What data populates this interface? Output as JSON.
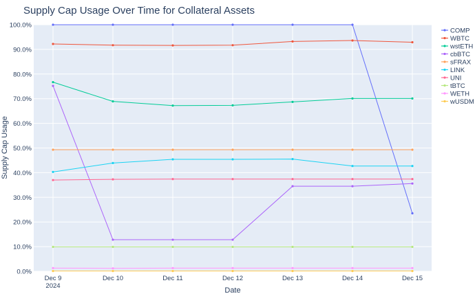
{
  "chart_data": {
    "type": "line",
    "title": "Supply Cap Usage Over Time for Collateral Assets",
    "xlabel": "Date",
    "ylabel": "Supply Cap Usage",
    "x": [
      "Dec 9\n2024",
      "Dec 10",
      "Dec 11",
      "Dec 12",
      "Dec 13",
      "Dec 14",
      "Dec 15"
    ],
    "ylim": [
      0,
      100
    ],
    "y_ticks": [
      0,
      10,
      20,
      30,
      40,
      50,
      60,
      70,
      80,
      90,
      100
    ],
    "y_tick_labels": [
      "0.0%",
      "10.0%",
      "20.0%",
      "30.0%",
      "40.0%",
      "50.0%",
      "60.0%",
      "70.0%",
      "80.0%",
      "90.0%",
      "100.0%"
    ],
    "grid": true,
    "legend_position": "right",
    "series": [
      {
        "name": "COMP",
        "color": "#636efa",
        "values": [
          100,
          100,
          100,
          100,
          100,
          100,
          23.5
        ]
      },
      {
        "name": "WBTC",
        "color": "#ef553b",
        "values": [
          92.2,
          91.7,
          91.6,
          91.7,
          93.2,
          93.6,
          92.9
        ]
      },
      {
        "name": "wstETH",
        "color": "#00cc96",
        "values": [
          76.7,
          68.9,
          67.2,
          67.3,
          68.7,
          70.1,
          70.1
        ]
      },
      {
        "name": "cbBTC",
        "color": "#ab63fa",
        "values": [
          75.2,
          12.8,
          12.8,
          12.8,
          34.5,
          34.5,
          35.6
        ]
      },
      {
        "name": "sFRAX",
        "color": "#ffa15a",
        "values": [
          49.3,
          49.3,
          49.3,
          49.3,
          49.3,
          49.3,
          49.3
        ]
      },
      {
        "name": "LINK",
        "color": "#19d3f3",
        "values": [
          40.3,
          43.9,
          45.4,
          45.4,
          45.5,
          42.7,
          42.7
        ]
      },
      {
        "name": "UNI",
        "color": "#ff6692",
        "values": [
          37.0,
          37.3,
          37.4,
          37.4,
          37.4,
          37.4,
          37.4
        ]
      },
      {
        "name": "tBTC",
        "color": "#b6e880",
        "values": [
          9.9,
          9.9,
          9.9,
          9.9,
          9.9,
          9.9,
          9.9
        ]
      },
      {
        "name": "WETH",
        "color": "#ff97ff",
        "values": [
          1.3,
          1.2,
          1.3,
          1.3,
          1.3,
          1.3,
          1.3
        ]
      },
      {
        "name": "wUSDM",
        "color": "#fecb52",
        "values": [
          0.1,
          0.1,
          0.1,
          0.1,
          0.1,
          0.1,
          0.1
        ]
      }
    ]
  }
}
